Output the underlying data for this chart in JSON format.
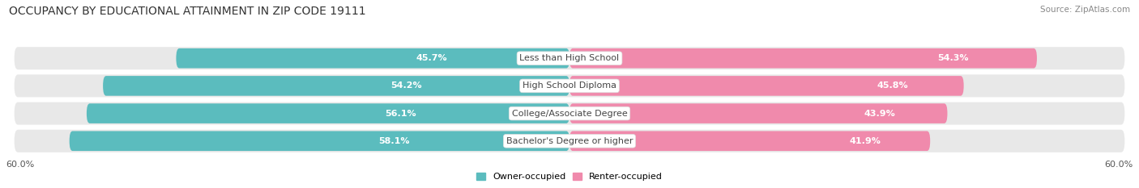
{
  "title": "OCCUPANCY BY EDUCATIONAL ATTAINMENT IN ZIP CODE 19111",
  "source": "Source: ZipAtlas.com",
  "categories": [
    "Less than High School",
    "High School Diploma",
    "College/Associate Degree",
    "Bachelor's Degree or higher"
  ],
  "owner_values": [
    45.7,
    54.2,
    56.1,
    58.1
  ],
  "renter_values": [
    54.3,
    45.8,
    43.9,
    41.9
  ],
  "owner_color": "#5bbcbe",
  "renter_color": "#f08aac",
  "owner_label": "Owner-occupied",
  "renter_label": "Renter-occupied",
  "x_axis_label_left": "60.0%",
  "x_axis_label_right": "60.0%",
  "title_fontsize": 10,
  "source_fontsize": 7.5,
  "bar_label_fontsize": 8,
  "category_fontsize": 8,
  "axis_fontsize": 8,
  "legend_fontsize": 8,
  "background_color": "#ffffff",
  "bar_height": 0.72,
  "bg_bar_color": "#e8e8e8",
  "bg_bar_padding": 4.5
}
